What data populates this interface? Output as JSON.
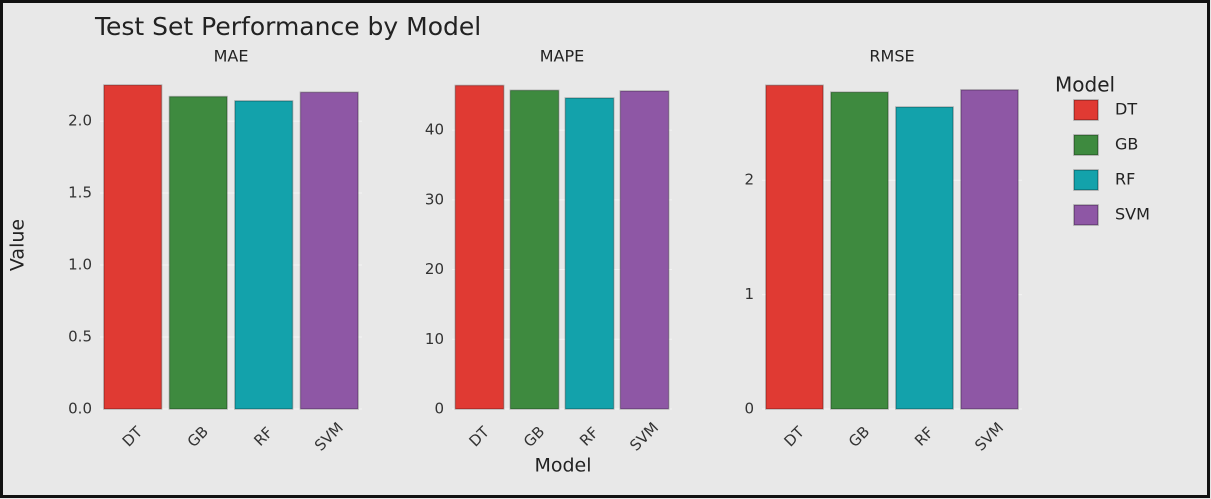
{
  "title": "Test Set Performance by Model",
  "x_label": "Model",
  "y_label": "Value",
  "legend_title": "Model",
  "chart_data": [
    {
      "type": "bar",
      "title": "MAE",
      "categories": [
        "DT",
        "GB",
        "RF",
        "SVM"
      ],
      "values": [
        2.25,
        2.17,
        2.14,
        2.2
      ],
      "colors": [
        "#e03a33",
        "#3e8a3f",
        "#13a2ab",
        "#8e57a5"
      ],
      "ylim": [
        0,
        2.32
      ],
      "yticks": [
        {
          "value": 0,
          "label": "0.0"
        },
        {
          "value": 0.5,
          "label": "0.5"
        },
        {
          "value": 1,
          "label": "1.0"
        },
        {
          "value": 1.5,
          "label": "1.5"
        },
        {
          "value": 2,
          "label": "2.0"
        }
      ],
      "grid": true
    },
    {
      "type": "bar",
      "title": "MAPE",
      "categories": [
        "DT",
        "GB",
        "RF",
        "SVM"
      ],
      "values": [
        46.4,
        45.7,
        44.6,
        45.6
      ],
      "colors": [
        "#e03a33",
        "#3e8a3f",
        "#13a2ab",
        "#8e57a5"
      ],
      "ylim": [
        0,
        47.9
      ],
      "yticks": [
        0,
        10,
        20,
        30,
        40
      ],
      "grid": true
    },
    {
      "type": "bar",
      "title": "RMSE",
      "categories": [
        "DT",
        "GB",
        "RF",
        "SVM"
      ],
      "values": [
        2.83,
        2.77,
        2.64,
        2.79
      ],
      "colors": [
        "#e03a33",
        "#3e8a3f",
        "#13a2ab",
        "#8e57a5"
      ],
      "ylim": [
        0,
        2.92
      ],
      "yticks": [
        0,
        1,
        2
      ],
      "grid": true
    }
  ]
}
